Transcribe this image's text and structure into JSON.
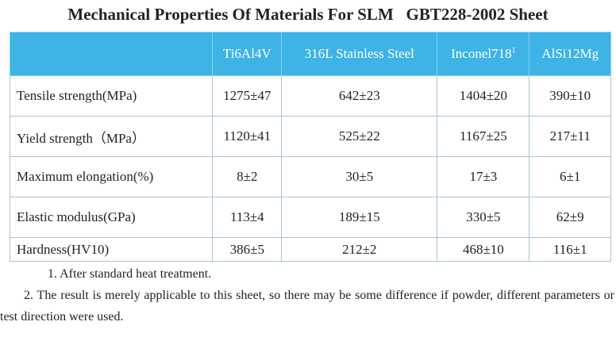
{
  "title": "Mechanical Properties Of Materials For SLM   GBT228-2002 Sheet",
  "table": {
    "header": [
      "",
      "Ti6Al4V",
      "316L Stainless Steel",
      {
        "text": "Inconel718",
        "sup": "1"
      },
      "AlSi12Mg"
    ],
    "rows": [
      [
        "Tensile strength(MPa)",
        "1275±47",
        "642±23",
        "1404±20",
        "390±10"
      ],
      [
        "Yield strength（MPa）",
        "1120±41",
        "525±22",
        "1167±25",
        "217±11"
      ],
      [
        "Maximum elongation(%)",
        "8±2",
        "30±5",
        "17±3",
        "6±1"
      ],
      [
        "Elastic modulus(GPa)",
        "113±4",
        "189±15",
        "330±5",
        "62±9"
      ],
      [
        "Hardness(HV10)",
        "386±5",
        "212±2",
        "468±10",
        "116±1"
      ]
    ]
  },
  "notes": [
    "1.  After standard heat treatment.",
    "2.  The result is merely applicable to this sheet, so there may be some difference if powder, different parameters or test direction were used."
  ]
}
